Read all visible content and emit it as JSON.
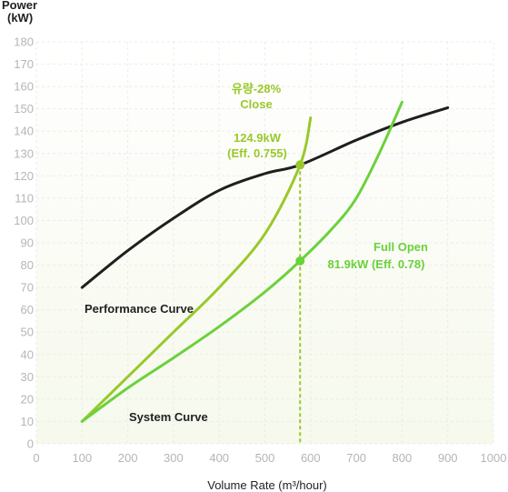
{
  "chart_data": {
    "type": "line",
    "ylabel": "Power",
    "ylabel_unit": "(kW)",
    "xlabel": "Volume Rate (m³/hour)",
    "xlim": [
      0,
      1000
    ],
    "ylim": [
      0,
      180
    ],
    "x_ticks": [
      0,
      100,
      200,
      300,
      400,
      500,
      600,
      700,
      800,
      900,
      1000
    ],
    "y_ticks": [
      0,
      10,
      20,
      30,
      40,
      50,
      60,
      70,
      80,
      90,
      100,
      110,
      120,
      130,
      140,
      150,
      160,
      170,
      180
    ],
    "grid": true,
    "colors": {
      "performance": "#1f1f1f",
      "close": "#9ac82a",
      "open": "#6bd13c",
      "background_tint": "#f6f9ec"
    },
    "series": [
      {
        "name": "Performance Curve",
        "x": [
          100,
          200,
          300,
          400,
          500,
          577,
          700,
          800,
          900
        ],
        "y": [
          70,
          86.5,
          101,
          113.5,
          121,
          124.9,
          136,
          144,
          150.5
        ]
      },
      {
        "name": "",
        "x": [
          100,
          200,
          300,
          400,
          500,
          577,
          600
        ],
        "y": [
          10,
          30,
          50,
          70,
          94,
          124.9,
          146
        ]
      },
      {
        "name": "System Curve",
        "x": [
          100,
          200,
          300,
          400,
          500,
          577,
          650,
          700,
          750,
          800
        ],
        "y": [
          10,
          25,
          38.5,
          52.5,
          68,
          81.9,
          97,
          110,
          130,
          153
        ]
      }
    ],
    "annotations": {
      "performance_label": "Performance Curve",
      "system_label": "System Curve",
      "close_title_line1": "유량-28%",
      "close_title_line2": "Close",
      "close_value_line1": "124.9kW",
      "close_value_line2": "(Eff. 0.755)",
      "open_title": "Full Open",
      "open_value": "81.9kW (Eff. 0.78)",
      "operating_x": 577,
      "close_point_y": 124.9,
      "open_point_y": 81.9
    }
  }
}
